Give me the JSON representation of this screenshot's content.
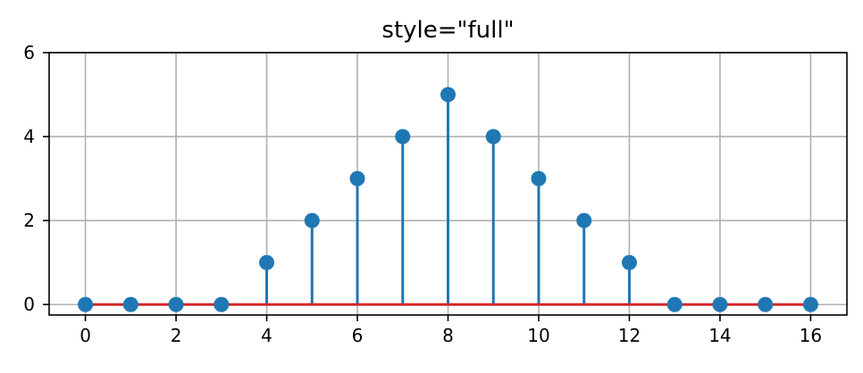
{
  "chart_data": {
    "type": "stem",
    "title": "style=\"full\"",
    "xlabel": "",
    "ylabel": "",
    "x": [
      0,
      1,
      2,
      3,
      4,
      5,
      6,
      7,
      8,
      9,
      10,
      11,
      12,
      13,
      14,
      15,
      16
    ],
    "y": [
      0,
      0,
      0,
      0,
      1,
      2,
      3,
      4,
      5,
      4,
      3,
      2,
      1,
      0,
      0,
      0,
      0
    ],
    "xlim": [
      -0.8,
      16.8
    ],
    "ylim": [
      -0.25,
      6
    ],
    "xticks": [
      0,
      2,
      4,
      6,
      8,
      10,
      12,
      14,
      16
    ],
    "yticks": [
      0,
      2,
      4,
      6
    ],
    "grid": true,
    "baseline_value": 0,
    "colors": {
      "stem": "#1f77b4",
      "marker": "#1f77b4",
      "baseline": "#d62728",
      "grid": "#b0b0b0",
      "axes": "#000000"
    }
  }
}
